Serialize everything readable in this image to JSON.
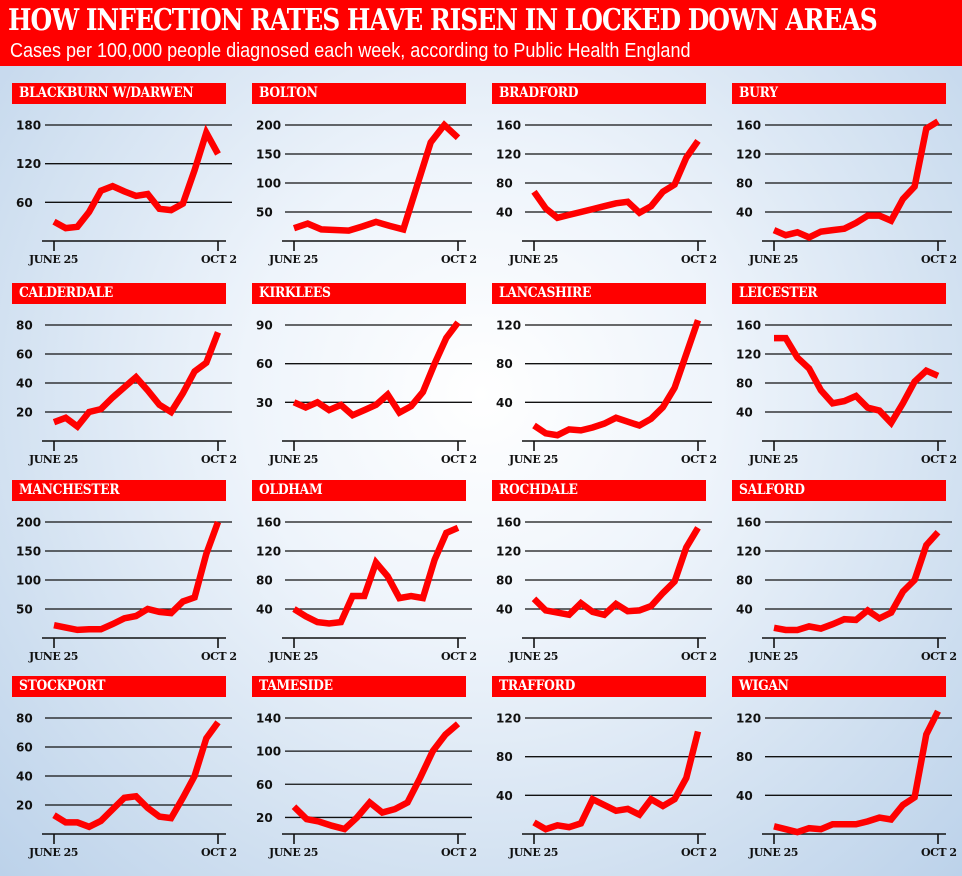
{
  "header": {
    "title": "HOW INFECTION RATES HAVE RISEN IN LOCKED DOWN AREAS",
    "subtitle": "Cases per 100,000 people diagnosed each week, according to Public Health England"
  },
  "colors": {
    "accent": "#ff0000",
    "line": "#ff0000",
    "text": "#111111",
    "label_text": "#ffffff"
  },
  "chart_data": [
    {
      "type": "line",
      "title": "BLACKBURN W/DARWEN",
      "xlabel_start": "JUNE 25",
      "xlabel_end": "OCT 2",
      "yticks": [
        60,
        120,
        180
      ],
      "ylim": [
        0,
        180
      ],
      "values": [
        30,
        20,
        22,
        45,
        78,
        85,
        77,
        70,
        73,
        50,
        48,
        58,
        110,
        168,
        135
      ]
    },
    {
      "type": "line",
      "title": "BOLTON",
      "xlabel_start": "JUNE 25",
      "xlabel_end": "OCT 2",
      "yticks": [
        50,
        100,
        150,
        200
      ],
      "ylim": [
        0,
        200
      ],
      "values": [
        22,
        30,
        20,
        19,
        18,
        25,
        33,
        26,
        20,
        95,
        170,
        200,
        178
      ]
    },
    {
      "type": "line",
      "title": "BRADFORD",
      "xlabel_start": "JUNE 25",
      "xlabel_end": "OCT 2",
      "yticks": [
        40,
        80,
        120,
        160
      ],
      "ylim": [
        0,
        160
      ],
      "values": [
        68,
        45,
        32,
        36,
        40,
        44,
        48,
        52,
        54,
        39,
        48,
        68,
        78,
        115,
        138
      ]
    },
    {
      "type": "line",
      "title": "BURY",
      "xlabel_start": "JUNE 25",
      "xlabel_end": "OCT 2",
      "yticks": [
        40,
        80,
        120,
        160
      ],
      "ylim": [
        0,
        160
      ],
      "values": [
        15,
        8,
        12,
        5,
        13,
        15,
        17,
        25,
        35,
        35,
        28,
        58,
        75,
        155,
        165
      ]
    },
    {
      "type": "line",
      "title": "CALDERDALE",
      "xlabel_start": "JUNE 25",
      "xlabel_end": "OCT 2",
      "yticks": [
        20,
        40,
        60,
        80
      ],
      "ylim": [
        0,
        80
      ],
      "values": [
        13,
        16,
        10,
        20,
        22,
        30,
        37,
        44,
        35,
        25,
        20,
        33,
        48,
        54,
        75
      ]
    },
    {
      "type": "line",
      "title": "KIRKLEES",
      "xlabel_start": "JUNE 25",
      "xlabel_end": "OCT 2",
      "yticks": [
        30,
        60,
        90
      ],
      "ylim": [
        0,
        90
      ],
      "values": [
        30,
        26,
        30,
        24,
        28,
        20,
        24,
        28,
        36,
        22,
        27,
        38,
        60,
        80,
        92
      ]
    },
    {
      "type": "line",
      "title": "LANCASHIRE",
      "xlabel_start": "JUNE 25",
      "xlabel_end": "OCT 2",
      "yticks": [
        40,
        80,
        120
      ],
      "ylim": [
        0,
        120
      ],
      "values": [
        16,
        8,
        6,
        12,
        11,
        14,
        18,
        24,
        20,
        16,
        23,
        35,
        55,
        90,
        125
      ]
    },
    {
      "type": "line",
      "title": "LEICESTER",
      "xlabel_start": "JUNE 25",
      "xlabel_end": "OCT 2",
      "yticks": [
        40,
        80,
        120,
        160
      ],
      "ylim": [
        0,
        160
      ],
      "values": [
        142,
        142,
        115,
        100,
        70,
        52,
        55,
        62,
        46,
        42,
        25,
        52,
        82,
        97,
        90
      ]
    },
    {
      "type": "line",
      "title": "MANCHESTER",
      "xlabel_start": "JUNE 25",
      "xlabel_end": "OCT 2",
      "yticks": [
        50,
        100,
        150,
        200
      ],
      "ylim": [
        0,
        200
      ],
      "values": [
        22,
        18,
        14,
        15,
        15,
        24,
        34,
        38,
        50,
        45,
        43,
        63,
        70,
        145,
        200
      ]
    },
    {
      "type": "line",
      "title": "OLDHAM",
      "xlabel_start": "JUNE 25",
      "xlabel_end": "OCT 2",
      "yticks": [
        40,
        80,
        120,
        160
      ],
      "ylim": [
        0,
        160
      ],
      "values": [
        40,
        30,
        22,
        20,
        22,
        58,
        58,
        104,
        85,
        55,
        58,
        55,
        108,
        145,
        152
      ]
    },
    {
      "type": "line",
      "title": "ROCHDALE",
      "xlabel_start": "JUNE 25",
      "xlabel_end": "OCT 2",
      "yticks": [
        40,
        80,
        120,
        160
      ],
      "ylim": [
        0,
        160
      ],
      "values": [
        54,
        38,
        35,
        32,
        48,
        36,
        32,
        47,
        37,
        38,
        44,
        62,
        78,
        125,
        152
      ]
    },
    {
      "type": "line",
      "title": "SALFORD",
      "xlabel_start": "JUNE 25",
      "xlabel_end": "OCT 2",
      "yticks": [
        40,
        80,
        120,
        160
      ],
      "ylim": [
        0,
        160
      ],
      "values": [
        14,
        11,
        11,
        16,
        13,
        19,
        26,
        25,
        38,
        27,
        35,
        64,
        80,
        128,
        146
      ]
    },
    {
      "type": "line",
      "title": "STOCKPORT",
      "xlabel_start": "JUNE 25",
      "xlabel_end": "OCT 2",
      "yticks": [
        20,
        40,
        60,
        80
      ],
      "ylim": [
        0,
        80
      ],
      "values": [
        13,
        8,
        8,
        5,
        9,
        17,
        25,
        26,
        18,
        12,
        11,
        25,
        40,
        66,
        77
      ]
    },
    {
      "type": "line",
      "title": "TAMESIDE",
      "xlabel_start": "JUNE 25",
      "xlabel_end": "OCT 2",
      "yticks": [
        20,
        60,
        100,
        140
      ],
      "ylim": [
        0,
        140
      ],
      "values": [
        33,
        18,
        15,
        10,
        6,
        20,
        38,
        26,
        30,
        38,
        68,
        100,
        120,
        133
      ]
    },
    {
      "type": "line",
      "title": "TRAFFORD",
      "xlabel_start": "JUNE 25",
      "xlabel_end": "OCT 2",
      "yticks": [
        40,
        80,
        120
      ],
      "ylim": [
        0,
        120
      ],
      "values": [
        12,
        5,
        9,
        7,
        11,
        36,
        30,
        24,
        26,
        20,
        36,
        29,
        36,
        58,
        106
      ]
    },
    {
      "type": "line",
      "title": "WIGAN",
      "xlabel_start": "JUNE 25",
      "xlabel_end": "OCT 2",
      "yticks": [
        40,
        80,
        120
      ],
      "ylim": [
        0,
        120
      ],
      "values": [
        8,
        5,
        2,
        6,
        5,
        10,
        10,
        10,
        13,
        17,
        15,
        30,
        38,
        103,
        127
      ]
    }
  ]
}
